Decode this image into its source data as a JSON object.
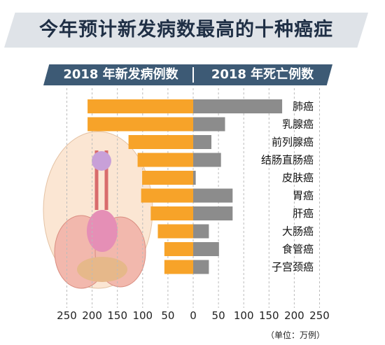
{
  "title": "今年预计新发病数最高的十种癌症",
  "header": {
    "left": "2018 年新发病例数",
    "right": "2018 年死亡例数"
  },
  "unit": "（单位：万例）",
  "colors": {
    "incidence": "#f7a329",
    "deaths": "#8c8c8c",
    "title_bg": "#dfe3e8",
    "header_bg": "#3d5a75"
  },
  "chart_data": {
    "type": "bar",
    "orientation": "horizontal-butterfly",
    "categories": [
      "肺癌",
      "乳腺癌",
      "前列腺癌",
      "结肠直肠癌",
      "皮肤癌",
      "胃癌",
      "肝癌",
      "大肠癌",
      "食管癌",
      "子宫颈癌"
    ],
    "series": [
      {
        "name": "2018 年新发病例数",
        "values": [
          209,
          209,
          128,
          110,
          101,
          103,
          84,
          70,
          57,
          57
        ]
      },
      {
        "name": "2018 年死亡例数",
        "values": [
          176,
          63,
          36,
          55,
          5,
          78,
          78,
          31,
          51,
          31
        ]
      }
    ],
    "xticks_left": [
      "250",
      "200",
      "150",
      "100",
      "50",
      "0"
    ],
    "xticks_right": [
      "50",
      "100",
      "150",
      "200",
      "250"
    ],
    "xlim": [
      0,
      250
    ]
  }
}
